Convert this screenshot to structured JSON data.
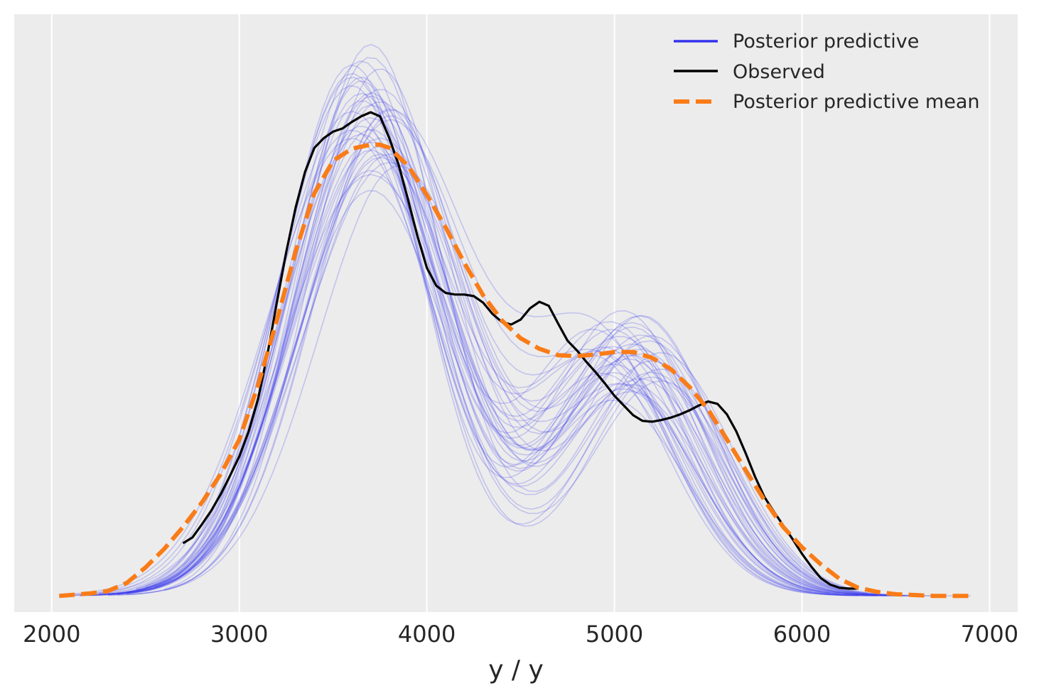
{
  "chart_data": {
    "type": "line",
    "title": "",
    "xlabel": "y / y",
    "ylabel": "",
    "xlim": [
      1800,
      7150
    ],
    "ylim": [
      -2e-05,
      0.000718
    ],
    "xticks": [
      2000,
      3000,
      4000,
      5000,
      6000,
      7000
    ],
    "xtick_labels": [
      "2000",
      "3000",
      "4000",
      "5000",
      "6000",
      "7000"
    ],
    "yticks_visible": false,
    "grid": "x-only",
    "background": "#ececec",
    "legend": {
      "position": "top-right",
      "entries": [
        "Posterior predictive",
        "Observed",
        "Posterior predictive mean"
      ]
    },
    "colors": {
      "posterior_predictive": "#3333ee",
      "observed": "#000000",
      "mean": "#fa7c17"
    },
    "series": [
      {
        "name": "Observed",
        "x": [
          2700,
          2750,
          2800,
          2850,
          2900,
          2950,
          3000,
          3050,
          3100,
          3150,
          3200,
          3250,
          3300,
          3350,
          3400,
          3450,
          3500,
          3550,
          3600,
          3650,
          3700,
          3750,
          3800,
          3850,
          3900,
          3950,
          4000,
          4050,
          4100,
          4150,
          4200,
          4250,
          4300,
          4350,
          4400,
          4450,
          4500,
          4550,
          4600,
          4650,
          4700,
          4750,
          4800,
          4850,
          4900,
          4950,
          5000,
          5050,
          5100,
          5150,
          5200,
          5250,
          5300,
          5350,
          5400,
          5450,
          5500,
          5550,
          5600,
          5650,
          5700,
          5750,
          5800,
          5850,
          5900,
          5950,
          6000,
          6050,
          6100,
          6150,
          6200,
          6250,
          6300
        ],
        "y": [
          6.5e-05,
          7.2e-05,
          8.8e-05,
          0.000105,
          0.000125,
          0.000148,
          0.000172,
          0.000203,
          0.000243,
          0.000298,
          0.000362,
          0.000424,
          0.000479,
          0.000523,
          0.000553,
          0.000565,
          0.000573,
          0.000577,
          0.000585,
          0.000592,
          0.000597,
          0.000592,
          0.000565,
          0.000532,
          0.000489,
          0.000444,
          0.000405,
          0.000383,
          0.000374,
          0.000372,
          0.000372,
          0.00037,
          0.000362,
          0.000348,
          0.000338,
          0.000335,
          0.000341,
          0.000355,
          0.000363,
          0.000358,
          0.000336,
          0.000315,
          0.000303,
          0.000289,
          0.000276,
          0.000262,
          0.000247,
          0.000235,
          0.000223,
          0.000216,
          0.000215,
          0.000217,
          0.00022,
          0.000224,
          0.000229,
          0.000235,
          0.00024,
          0.000237,
          0.000224,
          0.000203,
          0.000176,
          0.000147,
          0.000122,
          0.000104,
          8.7e-05,
          7e-05,
          5.2e-05,
          3.6e-05,
          2.2e-05,
          1.4e-05,
          1e-05,
          9e-06,
          9e-06
        ]
      },
      {
        "name": "Posterior predictive mean",
        "x": [
          2040,
          2100,
          2200,
          2300,
          2400,
          2500,
          2600,
          2700,
          2800,
          2900,
          3000,
          3100,
          3200,
          3300,
          3400,
          3500,
          3600,
          3700,
          3750,
          3800,
          3900,
          4000,
          4100,
          4200,
          4300,
          4400,
          4500,
          4600,
          4700,
          4800,
          4900,
          5000,
          5100,
          5200,
          5300,
          5400,
          5500,
          5600,
          5700,
          5800,
          5900,
          6000,
          6100,
          6200,
          6300,
          6400,
          6500,
          6600,
          6700,
          6800,
          6900
        ],
        "y": [
          0.0,
          1e-06,
          3e-06,
          6e-06,
          1.6e-05,
          3.5e-05,
          5.8e-05,
          8.5e-05,
          0.000115,
          0.00015,
          0.000193,
          0.00026,
          0.00034,
          0.000425,
          0.000497,
          0.000537,
          0.000552,
          0.000557,
          0.000557,
          0.000553,
          0.000531,
          0.000495,
          0.000455,
          0.000411,
          0.000371,
          0.00034,
          0.000318,
          0.000305,
          0.000297,
          0.000296,
          0.000298,
          0.000301,
          0.000301,
          0.000294,
          0.00028,
          0.000258,
          0.00023,
          0.000193,
          0.000155,
          0.000118,
          8.5e-05,
          6e-05,
          3.9e-05,
          2.1e-05,
          1e-05,
          5e-06,
          2e-06,
          1e-06,
          0.0,
          0.0,
          0.0
        ]
      }
    ],
    "posterior_predictive_draws": [
      {
        "x_range": [
          2250,
          6450
        ],
        "peak_x": 3600,
        "peak_y": 0.000598,
        "mid_x": 5100,
        "mid_y": 0.00026,
        "spread": 420
      },
      {
        "x_range": [
          2200,
          6500
        ],
        "peak_x": 3700,
        "peak_y": 0.000665,
        "mid_x": 5200,
        "mid_y": 0.00029,
        "spread": 390
      },
      {
        "x_range": [
          2300,
          6400
        ],
        "peak_x": 3750,
        "peak_y": 0.00054,
        "mid_x": 5000,
        "mid_y": 0.00033,
        "spread": 430
      },
      {
        "x_range": [
          2400,
          6300
        ],
        "peak_x": 3650,
        "peak_y": 0.00062,
        "mid_x": 5100,
        "mid_y": 0.00031,
        "spread": 400
      },
      {
        "x_range": [
          2150,
          6550
        ],
        "peak_x": 3800,
        "peak_y": 0.000585,
        "mid_x": 4950,
        "mid_y": 0.00028,
        "spread": 440
      },
      {
        "x_range": [
          2350,
          6350
        ],
        "peak_x": 3700,
        "peak_y": 0.0005,
        "mid_x": 5050,
        "mid_y": 0.00035,
        "spread": 410
      },
      {
        "x_range": [
          2500,
          6200
        ],
        "peak_x": 3600,
        "peak_y": 0.000645,
        "mid_x": 5200,
        "mid_y": 0.00027,
        "spread": 380
      },
      {
        "x_range": [
          2100,
          6600
        ],
        "peak_x": 3750,
        "peak_y": 0.000565,
        "mid_x": 5150,
        "mid_y": 0.0003,
        "spread": 450
      },
      {
        "x_range": [
          2450,
          6250
        ],
        "peak_x": 3650,
        "peak_y": 0.00061,
        "mid_x": 4900,
        "mid_y": 0.000325,
        "spread": 395
      },
      {
        "x_range": [
          2300,
          6450
        ],
        "peak_x": 3850,
        "peak_y": 0.00053,
        "mid_x": 5100,
        "mid_y": 0.000285,
        "spread": 425
      },
      {
        "x_range": [
          2600,
          6150
        ],
        "peak_x": 3700,
        "peak_y": 0.00068,
        "mid_x": 5000,
        "mid_y": 0.00024,
        "spread": 370
      },
      {
        "x_range": [
          2200,
          6500
        ],
        "peak_x": 3600,
        "peak_y": 0.000575,
        "mid_x": 5250,
        "mid_y": 0.000265,
        "spread": 435
      },
      {
        "x_range": [
          2350,
          6400
        ],
        "peak_x": 3800,
        "peak_y": 0.0006,
        "mid_x": 5050,
        "mid_y": 0.000315,
        "spread": 405
      },
      {
        "x_range": [
          2050,
          6700
        ],
        "peak_x": 3700,
        "peak_y": 0.00052,
        "mid_x": 5150,
        "mid_y": 0.000295,
        "spread": 460
      },
      {
        "x_range": [
          2550,
          6300
        ],
        "peak_x": 3650,
        "peak_y": 0.000635,
        "mid_x": 4950,
        "mid_y": 0.000305,
        "spread": 385
      },
      {
        "x_range": [
          2400,
          6350
        ],
        "peak_x": 3750,
        "peak_y": 0.000555,
        "mid_x": 5200,
        "mid_y": 0.00032,
        "spread": 415
      },
      {
        "x_range": [
          2250,
          6450
        ],
        "peak_x": 3700,
        "peak_y": 0.00059,
        "mid_x": 5100,
        "mid_y": 0.00025,
        "spread": 420
      },
      {
        "x_range": [
          2700,
          6050
        ],
        "peak_x": 3600,
        "peak_y": 0.000655,
        "mid_x": 5000,
        "mid_y": 0.000275,
        "spread": 375
      },
      {
        "x_range": [
          2150,
          6550
        ],
        "peak_x": 3800,
        "peak_y": 0.000545,
        "mid_x": 5150,
        "mid_y": 0.00034,
        "spread": 445
      },
      {
        "x_range": [
          2300,
          6400
        ],
        "peak_x": 3700,
        "peak_y": 0.000615,
        "mid_x": 4900,
        "mid_y": 0.00029,
        "spread": 400
      },
      {
        "x_range": [
          2450,
          6250
        ],
        "peak_x": 3650,
        "peak_y": 0.00058,
        "mid_x": 5250,
        "mid_y": 0.0003,
        "spread": 410
      },
      {
        "x_range": [
          2200,
          6500
        ],
        "peak_x": 3750,
        "peak_y": 0.000625,
        "mid_x": 5050,
        "mid_y": 0.000255,
        "spread": 430
      },
      {
        "x_range": [
          2350,
          6350
        ],
        "peak_x": 3700,
        "peak_y": 0.00056,
        "mid_x": 5100,
        "mid_y": 0.00033,
        "spread": 415
      },
      {
        "x_range": [
          2500,
          6200
        ],
        "peak_x": 3600,
        "peak_y": 0.00064,
        "mid_x": 5000,
        "mid_y": 0.000285,
        "spread": 390
      },
      {
        "x_range": [
          2100,
          6900
        ],
        "peak_x": 3800,
        "peak_y": 0.000535,
        "mid_x": 5200,
        "mid_y": 0.00031,
        "spread": 455
      },
      {
        "x_range": [
          2400,
          6300
        ],
        "peak_x": 3700,
        "peak_y": 0.000605,
        "mid_x": 4950,
        "mid_y": 0.00027,
        "spread": 400
      },
      {
        "x_range": [
          2250,
          6450
        ],
        "peak_x": 3650,
        "peak_y": 0.00057,
        "mid_x": 5150,
        "mid_y": 0.000345,
        "spread": 425
      },
      {
        "x_range": [
          2600,
          6100
        ],
        "peak_x": 3750,
        "peak_y": 0.00065,
        "mid_x": 5050,
        "mid_y": 0.00026,
        "spread": 380
      },
      {
        "x_range": [
          2300,
          6400
        ],
        "peak_x": 3700,
        "peak_y": 0.00055,
        "mid_x": 5100,
        "mid_y": 0.000295,
        "spread": 420
      },
      {
        "x_range": [
          2150,
          6600
        ],
        "peak_x": 3800,
        "peak_y": 0.000595,
        "mid_x": 4900,
        "mid_y": 0.000315,
        "spread": 440
      },
      {
        "x_range": [
          2450,
          6250
        ],
        "peak_x": 3600,
        "peak_y": 0.00063,
        "mid_x": 5250,
        "mid_y": 0.00028,
        "spread": 395
      },
      {
        "x_range": [
          2350,
          6350
        ],
        "peak_x": 3700,
        "peak_y": 0.000575,
        "mid_x": 5000,
        "mid_y": 0.000325,
        "spread": 410
      },
      {
        "x_range": [
          2200,
          6500
        ],
        "peak_x": 3750,
        "peak_y": 0.00061,
        "mid_x": 5150,
        "mid_y": 0.000265,
        "spread": 430
      },
      {
        "x_range": [
          2550,
          6200
        ],
        "peak_x": 3650,
        "peak_y": 0.00066,
        "mid_x": 5050,
        "mid_y": 0.0003,
        "spread": 385
      },
      {
        "x_range": [
          2250,
          6450
        ],
        "peak_x": 3700,
        "peak_y": 0.000525,
        "mid_x": 5100,
        "mid_y": 0.000335,
        "spread": 425
      },
      {
        "x_range": [
          2400,
          6300
        ],
        "peak_x": 3800,
        "peak_y": 0.00059,
        "mid_x": 4950,
        "mid_y": 0.00029,
        "spread": 405
      },
      {
        "x_range": [
          2100,
          6650
        ],
        "peak_x": 3600,
        "peak_y": 0.000565,
        "mid_x": 5200,
        "mid_y": 0.000275,
        "spread": 450
      },
      {
        "x_range": [
          2500,
          6250
        ],
        "peak_x": 3700,
        "peak_y": 0.00062,
        "mid_x": 5000,
        "mid_y": 0.000305,
        "spread": 395
      },
      {
        "x_range": [
          2300,
          6400
        ],
        "peak_x": 3750,
        "peak_y": 0.000545,
        "mid_x": 5150,
        "mid_y": 0.00032,
        "spread": 420
      },
      {
        "x_range": [
          2650,
          6150
        ],
        "peak_x": 3650,
        "peak_y": 0.00064,
        "mid_x": 5050,
        "mid_y": 0.000255,
        "spread": 375
      }
    ]
  }
}
